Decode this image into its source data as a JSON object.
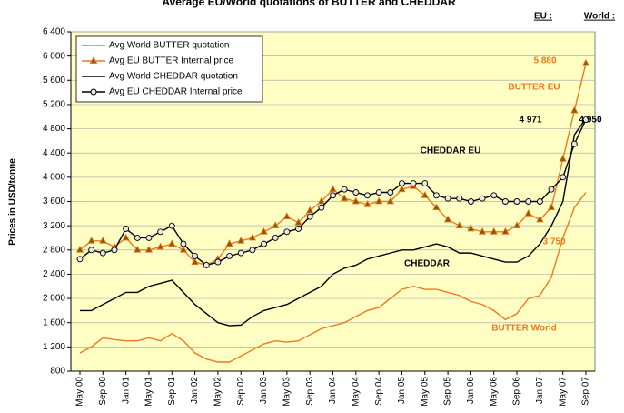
{
  "chart_data": {
    "type": "line",
    "title": "Average EU/World quotations of BUTTER and CHEDDAR",
    "header_labels": [
      "EU :",
      "World :"
    ],
    "ylabel": "Prices in USD/tonne",
    "categories": [
      "May 00",
      null,
      "Sep 00",
      null,
      "Jan 01",
      null,
      "May 01",
      null,
      "Sep 01",
      null,
      "Jan 02",
      null,
      "May 02",
      null,
      "Sep 02",
      null,
      "Jan 03",
      null,
      "May 03",
      null,
      "Sep 03",
      null,
      "Jan 04",
      null,
      "May 04",
      null,
      "Sep 04",
      null,
      "Jan 05",
      null,
      "May 05",
      null,
      "Sep 05",
      null,
      "Jan 06",
      null,
      "May 06",
      null,
      "Sep 06",
      null,
      "Jan 07",
      null,
      "May 07",
      null,
      "Sep 07"
    ],
    "series": [
      {
        "name": "Avg World BUTTER quotation",
        "color": "#f07820",
        "marker": "none",
        "values": [
          1100,
          1200,
          1350,
          1320,
          1300,
          1300,
          1350,
          1300,
          1420,
          1300,
          1100,
          1000,
          950,
          950,
          1050,
          1150,
          1250,
          1300,
          1280,
          1300,
          1400,
          1500,
          1550,
          1600,
          1700,
          1800,
          1850,
          2000,
          2150,
          2200,
          2150,
          2150,
          2100,
          2050,
          1950,
          1900,
          1800,
          1650,
          1750,
          2000,
          2050,
          2350,
          3000,
          3500,
          3750
        ]
      },
      {
        "name": "Avg EU BUTTER Internal price",
        "color": "#f07820",
        "marker": "triangle",
        "marker_fill": "#8b5a00",
        "values": [
          2800,
          2950,
          2950,
          2850,
          3000,
          2800,
          2800,
          2850,
          2900,
          2800,
          2600,
          2550,
          2650,
          2900,
          2950,
          3000,
          3100,
          3200,
          3350,
          3250,
          3450,
          3600,
          3800,
          3650,
          3600,
          3550,
          3600,
          3600,
          3800,
          3850,
          3700,
          3500,
          3300,
          3200,
          3150,
          3100,
          3100,
          3100,
          3200,
          3400,
          3300,
          3500,
          4300,
          5100,
          5880
        ]
      },
      {
        "name": "Avg World CHEDDAR quotation",
        "color": "#000000",
        "marker": "none",
        "values": [
          1800,
          1800,
          1900,
          2000,
          2100,
          2100,
          2200,
          2250,
          2300,
          2100,
          1900,
          1750,
          1600,
          1550,
          1560,
          1700,
          1800,
          1850,
          1900,
          2000,
          2100,
          2200,
          2400,
          2500,
          2550,
          2650,
          2700,
          2750,
          2800,
          2800,
          2850,
          2900,
          2850,
          2750,
          2750,
          2700,
          2650,
          2600,
          2600,
          2700,
          2900,
          3200,
          3600,
          4700,
          4971
        ]
      },
      {
        "name": "Avg EU CHEDDAR Internal price",
        "color": "#000000",
        "marker": "circle",
        "marker_fill": "#e8e8e8",
        "values": [
          2650,
          2800,
          2750,
          2800,
          3150,
          3000,
          3000,
          3100,
          3200,
          2900,
          2700,
          2550,
          2600,
          2700,
          2750,
          2800,
          2900,
          3000,
          3100,
          3150,
          3350,
          3500,
          3700,
          3800,
          3750,
          3700,
          3750,
          3750,
          3900,
          3900,
          3900,
          3700,
          3650,
          3650,
          3600,
          3650,
          3700,
          3600,
          3600,
          3600,
          3600,
          3800,
          4000,
          4550,
          4950
        ]
      }
    ],
    "ylim": [
      800,
      6400
    ],
    "yticks": [
      800,
      {
        "value": 1200,
        "label": "1 200"
      },
      {
        "value": 1600,
        "label": "1 600"
      },
      {
        "value": 2000,
        "label": "2 000"
      },
      {
        "value": 2400,
        "label": "2 400"
      },
      {
        "value": 2800,
        "label": "2 800"
      },
      {
        "value": 3200,
        "label": "3 200"
      },
      {
        "value": 3600,
        "label": "3 600"
      },
      {
        "value": 4000,
        "label": "4 000"
      },
      {
        "value": 4400,
        "label": "4 400"
      },
      {
        "value": 4800,
        "label": "4 800"
      },
      {
        "value": 5200,
        "label": "5 200"
      },
      {
        "value": 5600,
        "label": "5 600"
      },
      {
        "value": 6000,
        "label": "6 000"
      },
      {
        "value": 6400,
        "label": "6 400"
      }
    ],
    "grid": true,
    "plot_background": "#ffffc4",
    "legend": "upper left",
    "annotations": [
      {
        "text": "5 880",
        "color": "#f07820"
      },
      {
        "text": "BUTTER EU",
        "color": "#f07820"
      },
      {
        "text": "4 971",
        "color": "#000000"
      },
      {
        "text": "4 950",
        "color": "#000000"
      },
      {
        "text": "CHEDDAR  EU",
        "color": "#000000"
      },
      {
        "text": "CHEDDAR",
        "color": "#000000"
      },
      {
        "text": "BUTTER World",
        "color": "#f07820"
      },
      {
        "text": "3 750",
        "color": "#f07820"
      }
    ]
  }
}
